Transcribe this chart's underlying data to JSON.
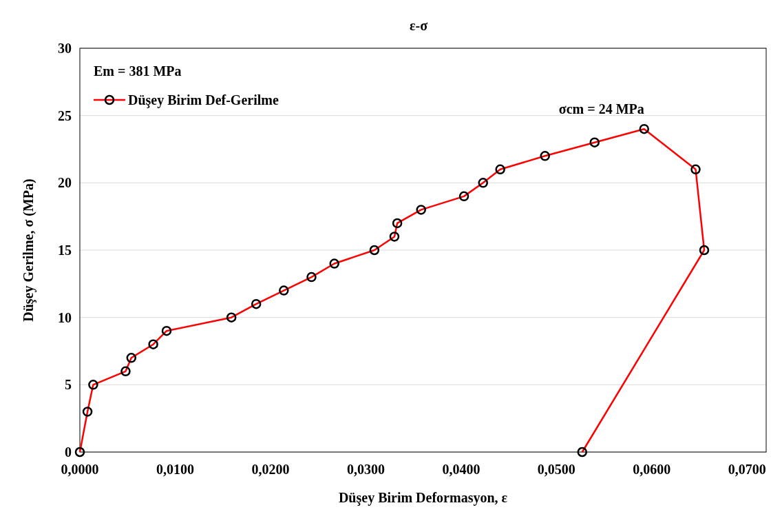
{
  "chart_data": {
    "type": "line",
    "title": "ε-σ",
    "xlabel": "Düşey Birim Deformasyon, ε",
    "ylabel": "Düşey Gerilme, σ (MPa)",
    "x": [
      0,
      0.0008,
      0.0014,
      0.0048,
      0.0054,
      0.0077,
      0.0091,
      0.0159,
      0.0185,
      0.0214,
      0.0243,
      0.0267,
      0.0309,
      0.033,
      0.0333,
      0.0358,
      0.0403,
      0.0423,
      0.0441,
      0.0488,
      0.054,
      0.0592,
      0.0646,
      0.0655,
      0.0527
    ],
    "series": [
      {
        "name": "Düşey Birim Def-Gerilme",
        "color": "#ff0000",
        "values": [
          0,
          3,
          5,
          6,
          7,
          8,
          9,
          10,
          11,
          12,
          13,
          14,
          15,
          16,
          17,
          18,
          19,
          20,
          21,
          22,
          23,
          24,
          21,
          15,
          0
        ]
      }
    ],
    "xlim": [
      0,
      0.072
    ],
    "xticks": [
      {
        "value": 0,
        "label": "0,0000"
      },
      {
        "value": 0.01,
        "label": "0,0100"
      },
      {
        "value": 0.02,
        "label": "0,0200"
      },
      {
        "value": 0.03,
        "label": "0,0300"
      },
      {
        "value": 0.04,
        "label": "0,0400"
      },
      {
        "value": 0.05,
        "label": "0,0500"
      },
      {
        "value": 0.06,
        "label": "0,0600"
      },
      {
        "value": 0.07,
        "label": "0,0700"
      }
    ],
    "ylim": [
      0,
      30
    ],
    "yticks": [
      0,
      5,
      10,
      15,
      20,
      25,
      30
    ],
    "grid": "y",
    "legend": "top left",
    "marker": "circle",
    "line_style": "solid",
    "annotations": [
      "Em = 381 MPa",
      {
        "text": "σcm = 24 MPa",
        "x": 0.0592,
        "y": 24
      }
    ]
  }
}
